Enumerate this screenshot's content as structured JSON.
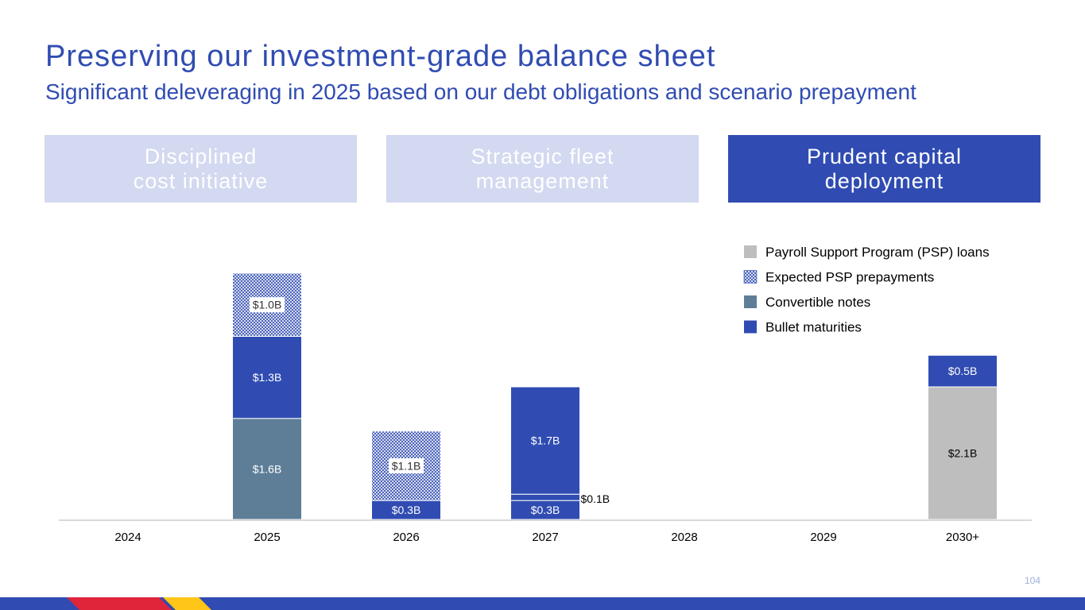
{
  "header": {
    "title": "Preserving our investment-grade balance sheet",
    "subtitle": "Significant deleveraging in 2025 based on our debt obligations and scenario prepayment"
  },
  "pillars": [
    {
      "label": "Disciplined\ncost initiative",
      "active": false
    },
    {
      "label": "Strategic fleet\nmanagement",
      "active": false
    },
    {
      "label": "Prudent capital\ndeployment",
      "active": true
    }
  ],
  "colors": {
    "brand_blue": "#304CB2",
    "light_blue": "#D2D9F0",
    "convertible": "#5E7E98",
    "psp_grey": "#BEBEBE",
    "red": "#E0243A",
    "yellow": "#FFC518"
  },
  "chart_data": {
    "type": "bar",
    "stacked": true,
    "unit": "$B",
    "categories": [
      "2024",
      "2025",
      "2026",
      "2027",
      "2028",
      "2029",
      "2030+"
    ],
    "series": [
      {
        "name": "Bullet maturities",
        "color": "#304CB2",
        "pattern": "solid",
        "values": [
          0,
          0,
          0.3,
          0.3,
          0,
          0,
          0
        ],
        "labels": [
          "",
          "",
          "$0.3B",
          "$0.3B",
          "",
          "",
          ""
        ]
      },
      {
        "name": "Convertible notes",
        "color": "#5E7E98",
        "pattern": "solid",
        "values": [
          0,
          1.6,
          0,
          0,
          0,
          0,
          0
        ],
        "labels": [
          "",
          "$1.6B",
          "",
          "",
          "",
          "",
          ""
        ]
      },
      {
        "name": "Bullet maturities",
        "color": "#304CB2",
        "pattern": "solid",
        "values": [
          0,
          1.3,
          0,
          0.1,
          0,
          0,
          0
        ],
        "labels": [
          "",
          "$1.3B",
          "",
          "$0.1B",
          "",
          "",
          ""
        ]
      },
      {
        "name": "Bullet maturities",
        "color": "#304CB2",
        "pattern": "solid",
        "values": [
          0,
          0,
          0,
          1.7,
          0,
          0,
          0
        ],
        "labels": [
          "",
          "",
          "",
          "$1.7B",
          "",
          "",
          ""
        ]
      },
      {
        "name": "Payroll Support Program (PSP) loans",
        "color": "#BEBEBE",
        "pattern": "solid",
        "values": [
          0,
          0,
          0,
          0,
          0,
          0,
          2.1
        ],
        "labels": [
          "",
          "",
          "",
          "",
          "",
          "",
          "$2.1B"
        ]
      },
      {
        "name": "Bullet maturities",
        "color": "#304CB2",
        "pattern": "solid",
        "values": [
          0,
          0,
          0,
          0,
          0,
          0,
          0.5
        ],
        "labels": [
          "",
          "",
          "",
          "",
          "",
          "",
          "$0.5B"
        ]
      },
      {
        "name": "Expected PSP prepayments",
        "color": "#304CB2",
        "pattern": "hatch",
        "values": [
          0,
          1.0,
          1.1,
          0,
          0,
          0,
          0
        ],
        "labels": [
          "",
          "$1.0B",
          "$1.1B",
          "",
          "",
          "",
          ""
        ]
      }
    ],
    "legend": [
      {
        "name": "Payroll Support Program (PSP) loans",
        "color": "#BEBEBE",
        "pattern": "solid"
      },
      {
        "name": "Expected PSP prepayments",
        "color": "#304CB2",
        "pattern": "hatch"
      },
      {
        "name": "Convertible notes",
        "color": "#5E7E98",
        "pattern": "solid"
      },
      {
        "name": "Bullet maturities",
        "color": "#304CB2",
        "pattern": "solid"
      }
    ],
    "legend_position": "top-right",
    "ylim": [
      0,
      3.9
    ],
    "grid": false,
    "xlabel": "",
    "ylabel": ""
  },
  "page_number": "104"
}
